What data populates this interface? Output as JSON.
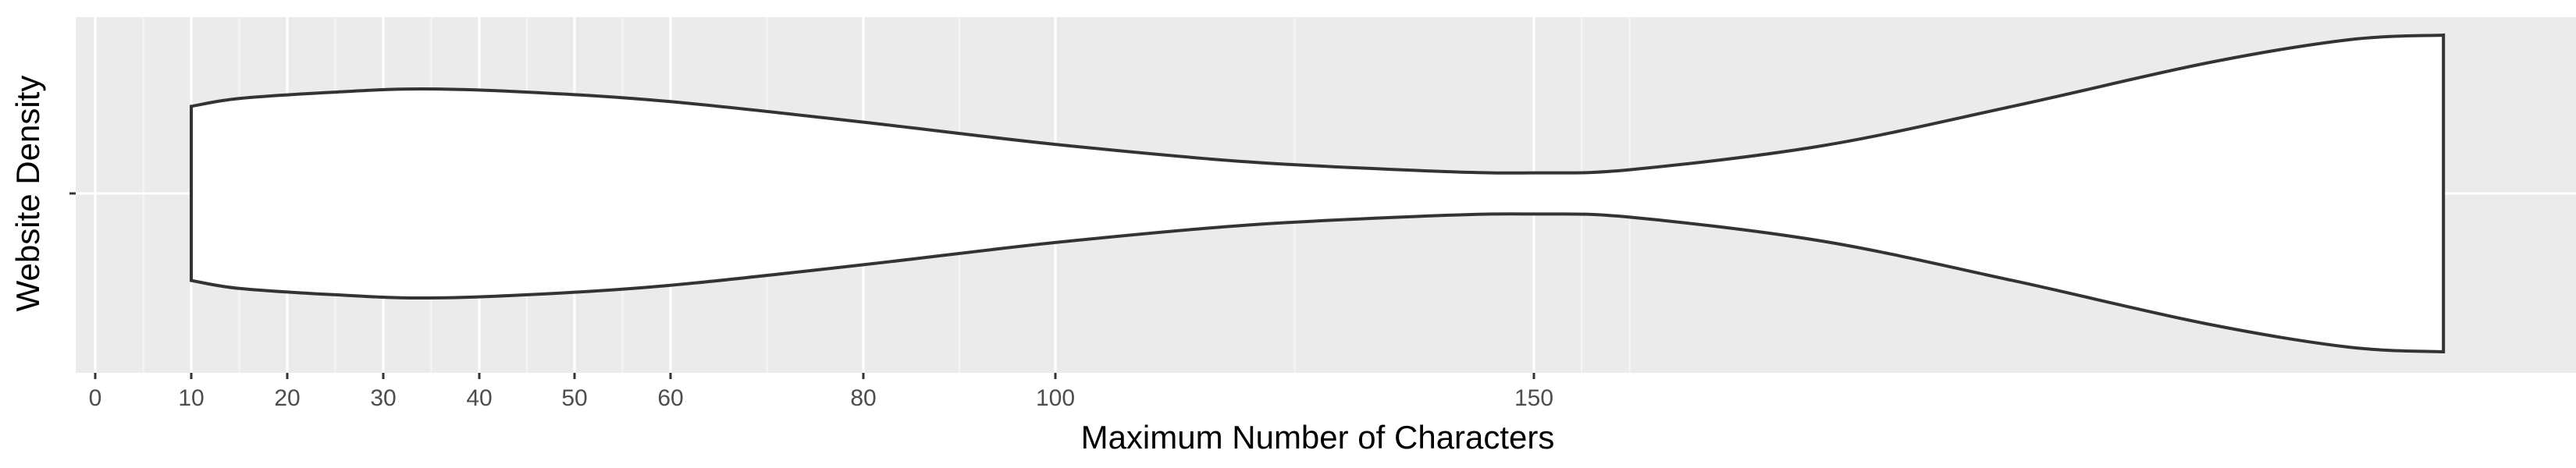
{
  "chart_data": {
    "type": "violin",
    "title": "",
    "xlabel": "Maximum Number of Characters",
    "ylabel": "Website Density",
    "x_ticks": [
      0,
      10,
      20,
      30,
      40,
      50,
      60,
      80,
      100,
      150
    ],
    "x_minor_gridlines": [
      5,
      15,
      25,
      35,
      45,
      55,
      70,
      90,
      125,
      155,
      160
    ],
    "xlim": [
      -1.5,
      252
    ],
    "grid": true,
    "background": "#ebebeb",
    "series": [
      {
        "x_range": [
          10,
          245
        ],
        "density_profile": [
          [
            10,
            0.55
          ],
          [
            15,
            0.6
          ],
          [
            25,
            0.64
          ],
          [
            34,
            0.66
          ],
          [
            45,
            0.64
          ],
          [
            60,
            0.58
          ],
          [
            80,
            0.45
          ],
          [
            100,
            0.31
          ],
          [
            120,
            0.2
          ],
          [
            140,
            0.14
          ],
          [
            150,
            0.13
          ],
          [
            160,
            0.15
          ],
          [
            180,
            0.3
          ],
          [
            200,
            0.55
          ],
          [
            220,
            0.82
          ],
          [
            235,
            0.97
          ],
          [
            245,
            1.0
          ]
        ],
        "fill": "#ffffff",
        "stroke": "#333333"
      }
    ]
  }
}
